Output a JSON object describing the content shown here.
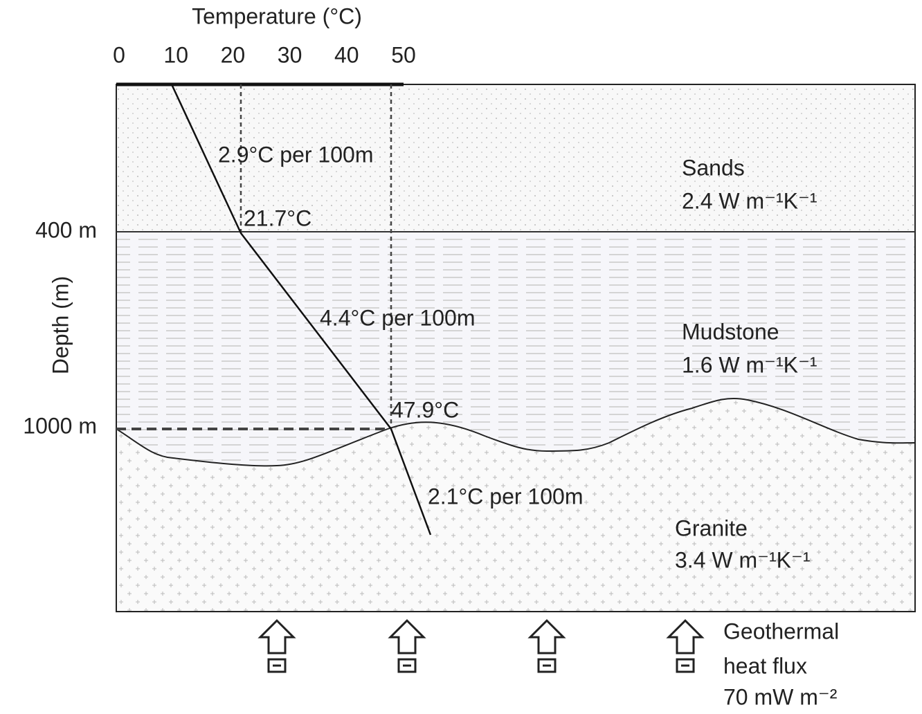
{
  "axis": {
    "title": "Temperature (°C)",
    "ticks": [
      0,
      10,
      20,
      30,
      40,
      50
    ]
  },
  "depth": {
    "title": "Depth (m)",
    "labels": [
      "400 m",
      "1000 m"
    ]
  },
  "gradients": [
    "2.9°C per 100m",
    "4.4°C per 100m",
    "2.1°C per 100m"
  ],
  "temperatures": [
    "21.7°C",
    "47.9°C"
  ],
  "layers": [
    {
      "name": "Sands",
      "conductivity": "2.4 W m⁻¹K⁻¹"
    },
    {
      "name": "Mudstone",
      "conductivity": "1.6 W m⁻¹K⁻¹"
    },
    {
      "name": "Granite",
      "conductivity": "3.4 W m⁻¹K⁻¹"
    }
  ],
  "heat_flux": [
    "Geothermal",
    "heat flux",
    "70 mW m⁻²"
  ]
}
